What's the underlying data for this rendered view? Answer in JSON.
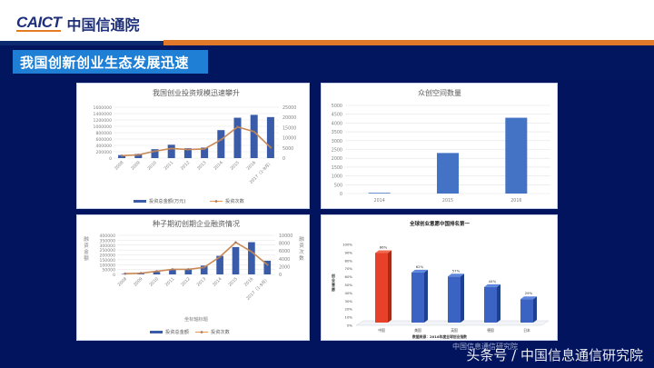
{
  "header": {
    "logo_en": "CAICT",
    "logo_cn": "中国信通院",
    "slide_title": "我国创新创业生态发展迅速"
  },
  "watermark": {
    "main": "头条号 / 中国信息通信研究院",
    "small": "中国信息通信研究院"
  },
  "colors": {
    "navy_bg": "#02145e",
    "title_blue": "#1f7fd4",
    "orange_accent": "#e07a2a",
    "bar_blue": "#4472c4",
    "line_orange": "#ed7d31",
    "highlight_red": "#e8412a"
  },
  "chart_data": [
    {
      "type": "bar+line",
      "title": "我国创业投资规模迅速攀升",
      "categories": [
        "2008",
        "2009",
        "2010",
        "2011",
        "2012",
        "2013",
        "2014",
        "2015",
        "2016",
        "2017（1-9月）"
      ],
      "series": [
        {
          "name": "投资总金额(万元)",
          "type": "bar",
          "axis": "left",
          "values": [
            95000,
            130000,
            280000,
            420000,
            310000,
            330000,
            880000,
            1270000,
            1360000,
            1290000
          ]
        },
        {
          "name": "投资次数",
          "type": "line",
          "axis": "right",
          "values": [
            1200,
            1600,
            3400,
            4700,
            4200,
            4500,
            9000,
            15300,
            13000,
            5200
          ]
        }
      ],
      "y_left": {
        "ylim": [
          0,
          1600000
        ],
        "ticks": [
          "0",
          "200000",
          "400000",
          "600000",
          "800000",
          "1000000",
          "1200000",
          "1400000",
          "1600000"
        ]
      },
      "y_right": {
        "ylim": [
          0,
          25000
        ],
        "ticks": [
          "0",
          "5000",
          "10000",
          "15000",
          "20000",
          "25000"
        ]
      },
      "legend_position": "bottom",
      "grid": true
    },
    {
      "type": "bar",
      "title": "众创空间数量",
      "categories": [
        "2014",
        "2015",
        "2016"
      ],
      "values": [
        40,
        2300,
        4300
      ],
      "ylim": [
        0,
        5000
      ],
      "yticks": [
        "0",
        "500",
        "1000",
        "1500",
        "2000",
        "2500",
        "3000",
        "3500",
        "4000",
        "4500",
        "5000"
      ],
      "grid": true
    },
    {
      "type": "bar+line",
      "title": "种子期初创期企业融资情况",
      "xlabel": "坐标轴标题",
      "ylabel_left": "融资金额",
      "ylabel_right": "融资次数",
      "categories": [
        "2008",
        "2009",
        "2010",
        "2011",
        "2012",
        "2013",
        "2014",
        "2015",
        "2016",
        "2017（1-9月）"
      ],
      "series": [
        {
          "name": "投资总金额",
          "type": "bar",
          "axis": "left",
          "values": [
            5000,
            8000,
            25000,
            50000,
            50000,
            90000,
            190000,
            280000,
            330000,
            140000
          ]
        },
        {
          "name": "投资次数",
          "type": "line",
          "axis": "right",
          "values": [
            200,
            300,
            800,
            1300,
            1300,
            1800,
            4500,
            8200,
            5800,
            2500
          ]
        }
      ],
      "y_left": {
        "ylim": [
          0,
          400000
        ],
        "ticks": [
          "0",
          "50000",
          "100000",
          "150000",
          "200000",
          "250000",
          "300000",
          "350000",
          "400000"
        ]
      },
      "y_right": {
        "ylim": [
          0,
          10000
        ],
        "ticks": [
          "0",
          "2000",
          "4000",
          "6000",
          "8000",
          "10000"
        ]
      },
      "legend_position": "bottom",
      "grid": true
    },
    {
      "type": "bar",
      "title": "全球创业意愿中国排名第一",
      "ylabel": "创业意愿",
      "categories": [
        "中国",
        "美国",
        "英国",
        "德国",
        "日本"
      ],
      "values": [
        86,
        62,
        57,
        44,
        29
      ],
      "value_labels": [
        "86%",
        "62%",
        "57%",
        "44%",
        "29%"
      ],
      "ylim": [
        0,
        100
      ],
      "yticks": [
        "0%",
        "10%",
        "20%",
        "30%",
        "40%",
        "50%",
        "60%",
        "70%",
        "80%",
        "90%",
        "100%"
      ],
      "source": "数据来源：2016年度全球创业指数"
    }
  ]
}
